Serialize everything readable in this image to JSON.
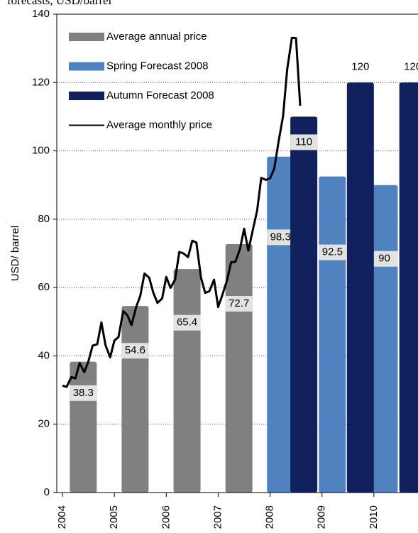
{
  "chart_data": {
    "type": "bar",
    "title": "forecasts, USD/barrel",
    "y_label": "USD/ barrel",
    "xlim": [
      2003.89,
      2010.85
    ],
    "xticks": [
      2004,
      2005,
      2006,
      2007,
      2008,
      2009,
      2010
    ],
    "ylim": [
      0,
      140
    ],
    "yticks": [
      0,
      20,
      40,
      60,
      80,
      100,
      120,
      140
    ],
    "grid": true,
    "legend": "upper left",
    "series": [
      {
        "name": "Average annual price",
        "type": "bar",
        "color": "#808080",
        "x": [
          2004.4,
          2005.4,
          2006.4,
          2007.4
        ],
        "values": [
          38.3,
          54.6,
          65.4,
          72.7
        ]
      },
      {
        "name": "Spring Forecast 2008",
        "type": "bar",
        "color": "#5082c0",
        "x": [
          2008.2,
          2009.2,
          2010.2
        ],
        "values": [
          98.3,
          92.5,
          90
        ]
      },
      {
        "name": "Autumn Forecast 2008",
        "type": "bar",
        "color": "#10215e",
        "x": [
          2008.65,
          2009.74,
          2010.75
        ],
        "values": [
          110,
          120,
          120
        ]
      },
      {
        "name": "Average monthly price",
        "type": "line",
        "color": "#000000",
        "x": [
          2004.0,
          2004.08,
          2004.17,
          2004.25,
          2004.33,
          2004.42,
          2004.5,
          2004.58,
          2004.67,
          2004.75,
          2004.83,
          2004.92,
          2005.0,
          2005.08,
          2005.17,
          2005.25,
          2005.33,
          2005.42,
          2005.5,
          2005.58,
          2005.67,
          2005.75,
          2005.83,
          2005.92,
          2006.0,
          2006.08,
          2006.17,
          2006.25,
          2006.33,
          2006.42,
          2006.5,
          2006.58,
          2006.67,
          2006.75,
          2006.83,
          2006.92,
          2007.0,
          2007.08,
          2007.17,
          2007.25,
          2007.33,
          2007.42,
          2007.5,
          2007.58,
          2007.67,
          2007.75,
          2007.83,
          2007.92,
          2008.0,
          2008.08,
          2008.17,
          2008.25,
          2008.33,
          2008.42,
          2008.5,
          2008.58
        ],
        "values": [
          31.3,
          30.9,
          33.8,
          33.4,
          37.9,
          35.2,
          38.4,
          43.0,
          43.4,
          49.8,
          43.1,
          39.6,
          44.5,
          45.5,
          53.1,
          51.9,
          49.0,
          54.3,
          57.6,
          64.1,
          62.9,
          58.5,
          55.5,
          56.8,
          63.1,
          59.9,
          62.3,
          70.4,
          70.0,
          68.9,
          73.7,
          73.2,
          62.8,
          58.4,
          58.9,
          62.3,
          54.3,
          57.8,
          62.1,
          67.4,
          67.5,
          71.3,
          77.2,
          70.8,
          77.0,
          82.5,
          92.1,
          91.5,
          92.0,
          94.8,
          103.3,
          110.2,
          123.9,
          133.1,
          133.0,
          113.2
        ]
      }
    ]
  }
}
